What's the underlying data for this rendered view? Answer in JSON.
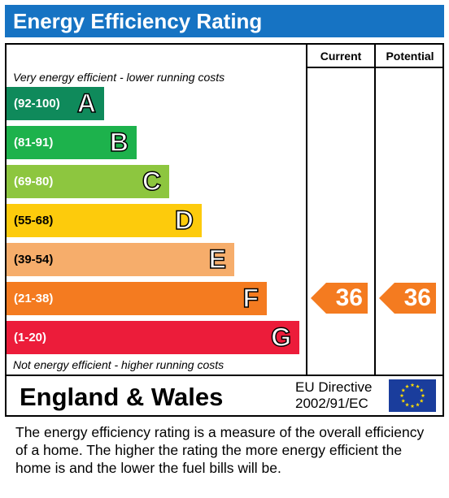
{
  "title": "Energy Efficiency Rating",
  "columns": {
    "current": "Current",
    "potential": "Potential"
  },
  "notes": {
    "top": "Very energy efficient - lower running costs",
    "bottom": "Not energy efficient - higher running costs"
  },
  "chart_data": {
    "type": "bar",
    "categories": [
      "A",
      "B",
      "C",
      "D",
      "E",
      "F",
      "G"
    ],
    "ranges": [
      "(92-100)",
      "(81-91)",
      "(69-80)",
      "(55-68)",
      "(39-54)",
      "(21-38)",
      "(1-20)"
    ],
    "colors": [
      "#0f8a5b",
      "#1db24c",
      "#8dc63f",
      "#fdcb0c",
      "#f6ad6b",
      "#f47b20",
      "#ec1c3a"
    ],
    "current": {
      "value": "36",
      "band": "F",
      "color": "#f47b20"
    },
    "potential": {
      "value": "36",
      "band": "F",
      "color": "#f47b20"
    }
  },
  "footer": {
    "region": "England & Wales",
    "directive_line1": "EU Directive",
    "directive_line2": "2002/91/EC"
  },
  "description": "The energy efficiency rating is a measure of the overall efficiency of a home.  The higher the rating the more energy efficient the home is and the lower the fuel bills will be."
}
